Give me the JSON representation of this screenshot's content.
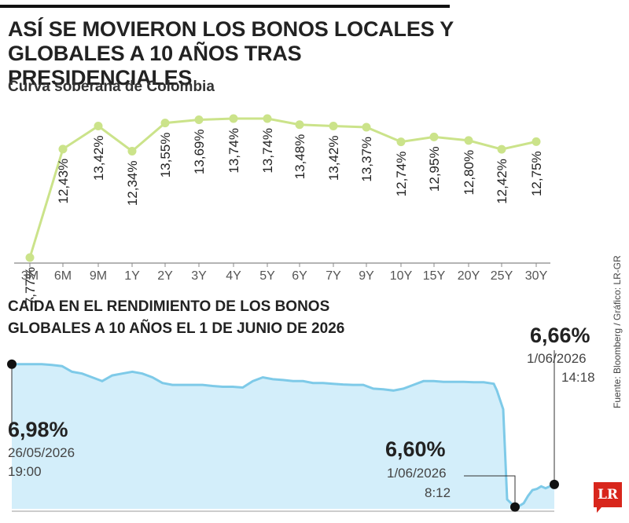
{
  "title": "ASÍ SE MOVIERON LOS BONOS LOCALES Y GLOBALES A 10 AÑOS TRAS PRESIDENCIALES",
  "source": "Fuente: Bloomberg / Gráfico: LR-GR",
  "logo_text": "LR",
  "colors": {
    "line1": "#cbe38a",
    "dot1": "#cbe38a",
    "line2": "#7ecae8",
    "fill2": "#d3eefa",
    "text": "#222222"
  },
  "chart_data": [
    {
      "type": "line",
      "title": "Curva soberana de Colombia",
      "categories": [
        "3M",
        "6M",
        "9M",
        "1Y",
        "2Y",
        "3Y",
        "4Y",
        "5Y",
        "6Y",
        "7Y",
        "9Y",
        "10Y",
        "15Y",
        "20Y",
        "25Y",
        "30Y"
      ],
      "values": [
        7.77,
        12.43,
        13.42,
        12.34,
        13.55,
        13.69,
        13.74,
        13.74,
        13.48,
        13.42,
        13.37,
        12.74,
        12.95,
        12.8,
        12.42,
        12.75
      ],
      "labels": [
        "7,77%",
        "12,43%",
        "13,42%",
        "12,34%",
        "13,55%",
        "13,69%",
        "13,74%",
        "13,74%",
        "13,48%",
        "13,42%",
        "13,37%",
        "12,74%",
        "12,95%",
        "12,80%",
        "12,42%",
        "12,75%"
      ],
      "ylim": [
        7.77,
        13.74
      ],
      "grid": false
    },
    {
      "type": "area",
      "title": "CAÍDA EN EL RENDIMIENTO DE LOS BONOS GLOBALES A 10 AÑOS EL 1 DE JUNIO DE 2026",
      "values": [
        6.98,
        6.98,
        6.98,
        6.98,
        6.978,
        6.975,
        6.96,
        6.955,
        6.945,
        6.935,
        6.95,
        6.955,
        6.96,
        6.955,
        6.945,
        6.93,
        6.925,
        6.925,
        6.925,
        6.925,
        6.922,
        6.92,
        6.92,
        6.918,
        6.935,
        6.945,
        6.94,
        6.938,
        6.935,
        6.935,
        6.93,
        6.93,
        6.928,
        6.926,
        6.925,
        6.925,
        6.915,
        6.913,
        6.91,
        6.915,
        6.925,
        6.935,
        6.935,
        6.933,
        6.933,
        6.933,
        6.932,
        6.932,
        6.928,
        6.91,
        6.86,
        6.62,
        6.6,
        6.603,
        6.61,
        6.63,
        6.645,
        6.648,
        6.655,
        6.65,
        6.655,
        6.66
      ],
      "ylim": [
        6.595,
        6.99
      ],
      "annotations": [
        {
          "value": "6,98%",
          "date": "26/05/2026",
          "time": "19:00"
        },
        {
          "value": "6,60%",
          "date": "1/06/2026",
          "time": "8:12"
        },
        {
          "value": "6,66%",
          "date": "1/06/2026",
          "time": "14:18"
        }
      ]
    }
  ]
}
